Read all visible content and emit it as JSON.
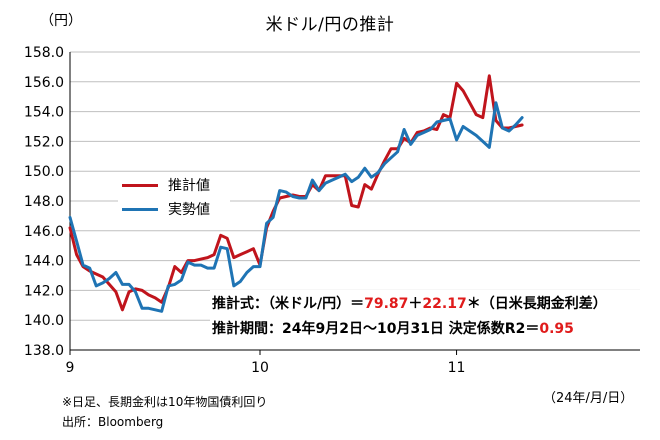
{
  "chart_data": {
    "type": "line",
    "title": "米ドル/円の推計",
    "ylabel": "（円）",
    "xlabel": "（24年/月/日）",
    "ylim": [
      138.0,
      158.0
    ],
    "y_ticks": [
      "138.0",
      "140.0",
      "142.0",
      "144.0",
      "146.0",
      "148.0",
      "150.0",
      "152.0",
      "154.0",
      "156.0",
      "158.0"
    ],
    "x_ticks": [
      {
        "label": "9",
        "x": 0
      },
      {
        "label": "10",
        "x": 29
      },
      {
        "label": "11",
        "x": 59
      }
    ],
    "xlim": [
      0,
      87
    ],
    "grid": true,
    "legend_position": "left",
    "series": [
      {
        "name": "推計値",
        "color": "#c0141c",
        "points": [
          [
            0,
            146.2
          ],
          [
            1,
            144.4
          ],
          [
            2,
            143.6
          ],
          [
            3,
            143.3
          ],
          [
            4,
            143.1
          ],
          [
            5,
            142.9
          ],
          [
            6,
            142.4
          ],
          [
            7,
            141.9
          ],
          [
            8,
            140.7
          ],
          [
            9,
            141.9
          ],
          [
            10,
            142.1
          ],
          [
            11,
            142.0
          ],
          [
            12,
            141.7
          ],
          [
            13,
            141.5
          ],
          [
            14,
            141.2
          ],
          [
            15,
            142.2
          ],
          [
            16,
            143.6
          ],
          [
            17,
            143.2
          ],
          [
            18,
            144.0
          ],
          [
            19,
            144.0
          ],
          [
            20,
            144.1
          ],
          [
            21,
            144.2
          ],
          [
            22,
            144.4
          ],
          [
            23,
            145.7
          ],
          [
            24,
            145.5
          ],
          [
            25,
            144.2
          ],
          [
            26,
            144.4
          ],
          [
            27,
            144.6
          ],
          [
            28,
            144.8
          ],
          [
            29,
            143.7
          ],
          [
            30,
            146.2
          ],
          [
            31,
            147.3
          ],
          [
            32,
            148.2
          ],
          [
            33,
            148.3
          ],
          [
            34,
            148.4
          ],
          [
            35,
            148.3
          ],
          [
            36,
            148.3
          ],
          [
            37,
            149.1
          ],
          [
            38,
            148.7
          ],
          [
            39,
            149.7
          ],
          [
            40,
            149.7
          ],
          [
            41,
            149.7
          ],
          [
            42,
            149.7
          ],
          [
            43,
            147.7
          ],
          [
            44,
            147.6
          ],
          [
            45,
            149.1
          ],
          [
            46,
            148.8
          ],
          [
            47,
            149.8
          ],
          [
            48,
            150.7
          ],
          [
            49,
            151.5
          ],
          [
            50,
            151.5
          ],
          [
            51,
            152.2
          ],
          [
            52,
            151.9
          ],
          [
            53,
            152.6
          ],
          [
            54,
            152.7
          ],
          [
            55,
            152.9
          ],
          [
            56,
            152.8
          ],
          [
            57,
            153.8
          ],
          [
            58,
            153.6
          ],
          [
            59,
            155.9
          ],
          [
            60,
            155.4
          ],
          [
            61,
            154.6
          ],
          [
            62,
            153.8
          ],
          [
            63,
            153.6
          ],
          [
            64,
            156.4
          ],
          [
            65,
            153.4
          ],
          [
            66,
            152.9
          ],
          [
            67,
            152.9
          ],
          [
            68,
            153.0
          ],
          [
            69,
            153.1
          ]
        ]
      },
      {
        "name": "実勢値",
        "color": "#1f74b4",
        "points": [
          [
            0,
            146.9
          ],
          [
            1,
            145.3
          ],
          [
            2,
            143.7
          ],
          [
            3,
            143.5
          ],
          [
            4,
            142.3
          ],
          [
            5,
            142.5
          ],
          [
            6,
            142.8
          ],
          [
            7,
            143.2
          ],
          [
            8,
            142.4
          ],
          [
            9,
            142.4
          ],
          [
            10,
            141.9
          ],
          [
            11,
            140.8
          ],
          [
            12,
            140.8
          ],
          [
            13,
            140.7
          ],
          [
            14,
            140.6
          ],
          [
            15,
            142.3
          ],
          [
            16,
            142.4
          ],
          [
            17,
            142.7
          ],
          [
            18,
            143.9
          ],
          [
            19,
            143.7
          ],
          [
            20,
            143.7
          ],
          [
            21,
            143.5
          ],
          [
            22,
            143.5
          ],
          [
            23,
            144.9
          ],
          [
            24,
            144.8
          ],
          [
            25,
            142.3
          ],
          [
            26,
            142.6
          ],
          [
            27,
            143.2
          ],
          [
            28,
            143.6
          ],
          [
            29,
            143.6
          ],
          [
            30,
            146.5
          ],
          [
            31,
            146.9
          ],
          [
            32,
            148.7
          ],
          [
            33,
            148.6
          ],
          [
            34,
            148.3
          ],
          [
            35,
            148.2
          ],
          [
            36,
            148.2
          ],
          [
            37,
            149.4
          ],
          [
            38,
            148.7
          ],
          [
            39,
            149.2
          ],
          [
            40,
            149.4
          ],
          [
            41,
            149.6
          ],
          [
            42,
            149.8
          ],
          [
            43,
            149.3
          ],
          [
            44,
            149.6
          ],
          [
            45,
            150.2
          ],
          [
            46,
            149.6
          ],
          [
            47,
            149.9
          ],
          [
            48,
            150.5
          ],
          [
            49,
            150.9
          ],
          [
            50,
            151.3
          ],
          [
            51,
            152.8
          ],
          [
            52,
            151.8
          ],
          [
            53,
            152.4
          ],
          [
            54,
            152.6
          ],
          [
            55,
            152.8
          ],
          [
            56,
            153.3
          ],
          [
            57,
            153.4
          ],
          [
            58,
            153.5
          ],
          [
            59,
            152.1
          ],
          [
            60,
            153.0
          ],
          [
            61,
            152.7
          ],
          [
            62,
            152.4
          ],
          [
            63,
            152.0
          ],
          [
            64,
            151.6
          ],
          [
            65,
            154.6
          ],
          [
            66,
            152.9
          ],
          [
            67,
            152.7
          ],
          [
            68,
            153.1
          ],
          [
            69,
            153.6
          ]
        ]
      }
    ],
    "annotations": [
      "推計式：（米ドル/円）＝79.87＋22.17＊（日米長期金利差）",
      "推計期間：24年9月2日～10月31日 決定係数R2＝0.95"
    ]
  },
  "notes": {
    "note1": "※日足、長期金利は10年物国債利回り",
    "note2": "出所：Bloomberg"
  },
  "formula": {
    "l1_pre": "推計式：（米ドル/円）＝",
    "l1_a": "79.87",
    "l1_mid": "＋",
    "l1_b": "22.17",
    "l1_post": "＊（日米長期金利差）",
    "l2_pre": "推計期間：24年9月2日～10月31日 決定係数R2＝",
    "l2_val": "0.95"
  },
  "colors": {
    "estimate": "#c0141c",
    "actual": "#1f74b4",
    "highlight": "#e01b1b",
    "grid": "#bfbfbf"
  }
}
